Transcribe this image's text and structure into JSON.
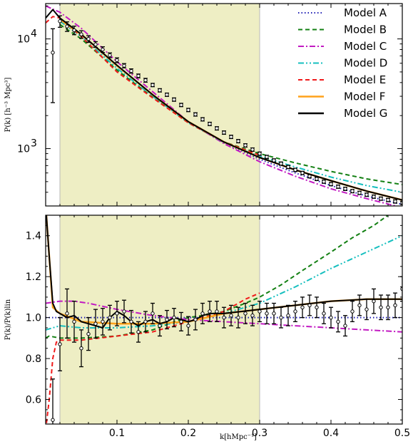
{
  "chart_data": [
    {
      "type": "line",
      "panel": "top",
      "xlim": [
        0.0,
        0.5
      ],
      "ylim": [
        300,
        21000
      ],
      "yscale": "log",
      "yticks": [
        {
          "value": 1000,
          "label": "10",
          "exp": "3"
        },
        {
          "value": 10000,
          "label": "10",
          "exp": "4"
        }
      ],
      "ylabel": "P(k) [h⁻³ Mpc³]",
      "shaded_region": [
        0.02,
        0.3
      ],
      "shade_color": "#eeeec4",
      "legend": {
        "placement": "top-right",
        "entries": [
          {
            "label": "Model A",
            "color": "#1f1fb4",
            "dash": "dot"
          },
          {
            "label": "Model B",
            "color": "#138013",
            "dash": "dash"
          },
          {
            "label": "Model C",
            "color": "#c21ac2",
            "dash": "dashdot"
          },
          {
            "label": "Model D",
            "color": "#16bfbf",
            "dash": "dashdotdot"
          },
          {
            "label": "Model E",
            "color": "#f0191a",
            "dash": "dash"
          },
          {
            "label": "Model F",
            "color": "#ffa21a",
            "dash": "solid"
          },
          {
            "label": "Model G",
            "color": "#000000",
            "dash": "solid"
          }
        ]
      },
      "series": [
        {
          "name": "Model A",
          "x": [
            0.02,
            0.05,
            0.1,
            0.15,
            0.2,
            0.25,
            0.3,
            0.35,
            0.4,
            0.45,
            0.5
          ],
          "y": [
            15000,
            11000,
            5700,
            3100,
            1750,
            1130,
            800,
            600,
            460,
            370,
            310
          ]
        },
        {
          "name": "Model B",
          "x": [
            0.02,
            0.05,
            0.1,
            0.15,
            0.2,
            0.25,
            0.3,
            0.35,
            0.4,
            0.45,
            0.5
          ],
          "y": [
            13500,
            10000,
            5200,
            2950,
            1720,
            1150,
            900,
            740,
            620,
            530,
            470
          ]
        },
        {
          "name": "Model C",
          "x": [
            0.0,
            0.02,
            0.05,
            0.1,
            0.15,
            0.2,
            0.25,
            0.3,
            0.35,
            0.4,
            0.45,
            0.5
          ],
          "y": [
            20000,
            17500,
            12500,
            6200,
            3300,
            1760,
            1110,
            760,
            560,
            430,
            350,
            290
          ]
        },
        {
          "name": "Model D",
          "x": [
            0.02,
            0.05,
            0.1,
            0.15,
            0.2,
            0.25,
            0.3,
            0.35,
            0.4,
            0.45,
            0.5
          ],
          "y": [
            14500,
            10500,
            5400,
            3000,
            1720,
            1140,
            850,
            680,
            550,
            460,
            400
          ]
        },
        {
          "name": "Model E",
          "x": [
            0.0,
            0.01,
            0.02,
            0.05,
            0.1,
            0.15,
            0.2,
            0.25,
            0.3
          ],
          "y": [
            14000,
            16000,
            15500,
            10500,
            5000,
            2900,
            1720,
            1150,
            870
          ]
        },
        {
          "name": "Model F",
          "x": [
            0.02,
            0.05,
            0.1,
            0.15,
            0.2,
            0.25,
            0.3,
            0.35,
            0.4,
            0.45,
            0.5
          ],
          "y": [
            15000,
            11000,
            5700,
            3100,
            1760,
            1150,
            830,
            640,
            510,
            410,
            340
          ]
        },
        {
          "name": "Model G",
          "x": [
            0.0,
            0.01,
            0.02,
            0.05,
            0.1,
            0.15,
            0.2,
            0.25,
            0.3,
            0.35,
            0.4,
            0.45,
            0.5
          ],
          "y": [
            15500,
            18500,
            15500,
            11000,
            5750,
            3100,
            1760,
            1150,
            830,
            640,
            510,
            410,
            340
          ]
        }
      ],
      "data_points": {
        "x": [
          0.01,
          0.02,
          0.03,
          0.04,
          0.05,
          0.06,
          0.07,
          0.08,
          0.09,
          0.1,
          0.11,
          0.12,
          0.13,
          0.14,
          0.15,
          0.16,
          0.17,
          0.18,
          0.19,
          0.2,
          0.21,
          0.22,
          0.23,
          0.24,
          0.25,
          0.26,
          0.27,
          0.28,
          0.29,
          0.3,
          0.31,
          0.32,
          0.33,
          0.34,
          0.35,
          0.36,
          0.37,
          0.38,
          0.39,
          0.4,
          0.41,
          0.42,
          0.43,
          0.44,
          0.45,
          0.46,
          0.47,
          0.48,
          0.49,
          0.5
        ],
        "y": [
          7500,
          14500,
          13000,
          12000,
          11000,
          10000,
          8900,
          8000,
          7100,
          6400,
          5700,
          5100,
          4600,
          4200,
          3800,
          3400,
          3100,
          2800,
          2500,
          2250,
          2050,
          1850,
          1680,
          1530,
          1400,
          1280,
          1170,
          1070,
          980,
          900,
          840,
          780,
          730,
          680,
          640,
          600,
          560,
          530,
          500,
          475,
          450,
          430,
          410,
          395,
          380,
          365,
          350,
          340,
          330,
          320
        ],
        "err_frac": [
          0.65,
          0.12,
          0.1,
          0.09,
          0.08,
          0.07,
          0.06,
          0.06,
          0.05,
          0.05,
          0.045,
          0.045,
          0.04,
          0.04,
          0.035,
          0.035,
          0.035,
          0.035,
          0.035,
          0.035,
          0.035,
          0.035,
          0.035,
          0.035,
          0.035,
          0.035,
          0.035,
          0.035,
          0.035,
          0.035,
          0.035,
          0.035,
          0.035,
          0.035,
          0.035,
          0.035,
          0.035,
          0.035,
          0.035,
          0.035,
          0.035,
          0.035,
          0.035,
          0.035,
          0.035,
          0.035,
          0.035,
          0.035,
          0.035,
          0.035
        ]
      }
    },
    {
      "type": "line",
      "panel": "bottom",
      "xlim": [
        0.0,
        0.5
      ],
      "ylim": [
        0.48,
        1.5
      ],
      "xticks": [
        0.1,
        0.2,
        0.3,
        0.4,
        0.5
      ],
      "yticks": [
        0.6,
        0.8,
        1.0,
        1.2,
        1.4
      ],
      "xlabel": "k[hMpc⁻¹]",
      "ylabel": "P(k)/P(k)lin",
      "shaded_region": [
        0.02,
        0.3
      ],
      "series": [
        {
          "name": "Model A",
          "x": [
            0.0,
            0.1,
            0.2,
            0.3,
            0.4,
            0.5
          ],
          "y": [
            1.0,
            1.0,
            1.0,
            1.0,
            1.0,
            1.0
          ]
        },
        {
          "name": "Model B",
          "x": [
            0.0,
            0.005,
            0.02,
            0.05,
            0.1,
            0.15,
            0.18,
            0.2,
            0.22,
            0.25,
            0.28,
            0.3,
            0.33,
            0.36,
            0.4,
            0.43,
            0.46,
            0.48
          ],
          "y": [
            0.9,
            0.91,
            0.9,
            0.9,
            0.91,
            0.94,
            0.98,
            1.0,
            1.01,
            1.03,
            1.07,
            1.1,
            1.16,
            1.23,
            1.32,
            1.39,
            1.45,
            1.5
          ]
        },
        {
          "name": "Model C",
          "x": [
            0.0,
            0.02,
            0.04,
            0.06,
            0.1,
            0.15,
            0.2,
            0.25,
            0.3,
            0.35,
            0.4,
            0.45,
            0.5
          ],
          "y": [
            1.07,
            1.08,
            1.08,
            1.07,
            1.04,
            1.01,
            0.99,
            0.98,
            0.97,
            0.96,
            0.95,
            0.94,
            0.93
          ]
        },
        {
          "name": "Model D",
          "x": [
            0.0,
            0.02,
            0.05,
            0.1,
            0.15,
            0.2,
            0.25,
            0.3,
            0.35,
            0.4,
            0.45,
            0.5
          ],
          "y": [
            0.94,
            0.96,
            0.95,
            0.95,
            0.96,
            0.98,
            1.02,
            1.07,
            1.15,
            1.24,
            1.32,
            1.4
          ]
        },
        {
          "name": "Model E",
          "x": [
            0.0,
            0.005,
            0.01,
            0.015,
            0.02,
            0.05,
            0.1,
            0.15,
            0.2,
            0.25,
            0.28,
            0.3
          ],
          "y": [
            0.45,
            0.6,
            0.8,
            0.88,
            0.89,
            0.89,
            0.91,
            0.93,
            0.98,
            1.03,
            1.09,
            1.12
          ]
        },
        {
          "name": "Model F",
          "x": [
            0.0,
            0.01,
            0.02,
            0.05,
            0.1,
            0.15,
            0.2,
            0.25,
            0.3,
            0.35,
            0.4,
            0.45,
            0.5
          ],
          "y": [
            1.55,
            1.05,
            1.02,
            0.98,
            0.97,
            0.97,
            0.98,
            1.02,
            1.04,
            1.06,
            1.08,
            1.09,
            1.09
          ]
        },
        {
          "name": "Model G",
          "x": [
            0.0,
            0.005,
            0.01,
            0.015,
            0.02,
            0.03,
            0.04,
            0.05,
            0.06,
            0.07,
            0.08,
            0.09,
            0.1,
            0.11,
            0.12,
            0.13,
            0.14,
            0.15,
            0.16,
            0.17,
            0.18,
            0.19,
            0.2,
            0.21,
            0.22,
            0.23,
            0.24,
            0.25,
            0.3,
            0.35,
            0.4,
            0.45,
            0.5
          ],
          "y": [
            1.55,
            1.3,
            1.07,
            1.03,
            1.02,
            1.0,
            1.01,
            0.98,
            0.97,
            0.96,
            0.95,
            1.0,
            1.03,
            1.01,
            0.98,
            0.96,
            0.98,
            0.99,
            0.97,
            0.98,
            1.0,
            0.99,
            0.98,
            0.99,
            1.01,
            1.02,
            1.02,
            1.02,
            1.04,
            1.06,
            1.08,
            1.09,
            1.09
          ]
        }
      ],
      "data_points": {
        "x": [
          0.01,
          0.02,
          0.03,
          0.04,
          0.05,
          0.06,
          0.07,
          0.08,
          0.09,
          0.1,
          0.11,
          0.12,
          0.13,
          0.14,
          0.15,
          0.16,
          0.17,
          0.18,
          0.19,
          0.2,
          0.21,
          0.22,
          0.23,
          0.24,
          0.25,
          0.26,
          0.27,
          0.28,
          0.29,
          0.3,
          0.31,
          0.32,
          0.33,
          0.34,
          0.35,
          0.36,
          0.37,
          0.38,
          0.39,
          0.4,
          0.41,
          0.42,
          0.43,
          0.44,
          0.45,
          0.46,
          0.47,
          0.48,
          0.49,
          0.5
        ],
        "y": [
          0.5,
          0.87,
          1.02,
          0.98,
          0.85,
          0.92,
          0.97,
          0.98,
          1.0,
          1.02,
          1.03,
          0.98,
          0.93,
          0.98,
          1.02,
          0.96,
          0.99,
          1.0,
          0.98,
          0.96,
          0.99,
          1.02,
          1.03,
          1.03,
          1.0,
          1.01,
          1.0,
          1.02,
          1.01,
          1.03,
          1.02,
          1.02,
          1.0,
          1.01,
          1.03,
          1.05,
          1.06,
          1.05,
          1.02,
          1.0,
          0.98,
          0.96,
          1.03,
          1.06,
          1.04,
          1.08,
          1.05,
          1.05,
          1.06,
          1.14
        ],
        "err": [
          0.2,
          0.13,
          0.12,
          0.1,
          0.09,
          0.08,
          0.07,
          0.065,
          0.06,
          0.06,
          0.055,
          0.055,
          0.05,
          0.05,
          0.05,
          0.05,
          0.045,
          0.045,
          0.045,
          0.045,
          0.05,
          0.05,
          0.05,
          0.05,
          0.05,
          0.05,
          0.05,
          0.05,
          0.05,
          0.05,
          0.05,
          0.05,
          0.05,
          0.05,
          0.05,
          0.05,
          0.05,
          0.05,
          0.05,
          0.05,
          0.05,
          0.05,
          0.05,
          0.05,
          0.05,
          0.06,
          0.06,
          0.06,
          0.06,
          0.06
        ]
      }
    }
  ]
}
